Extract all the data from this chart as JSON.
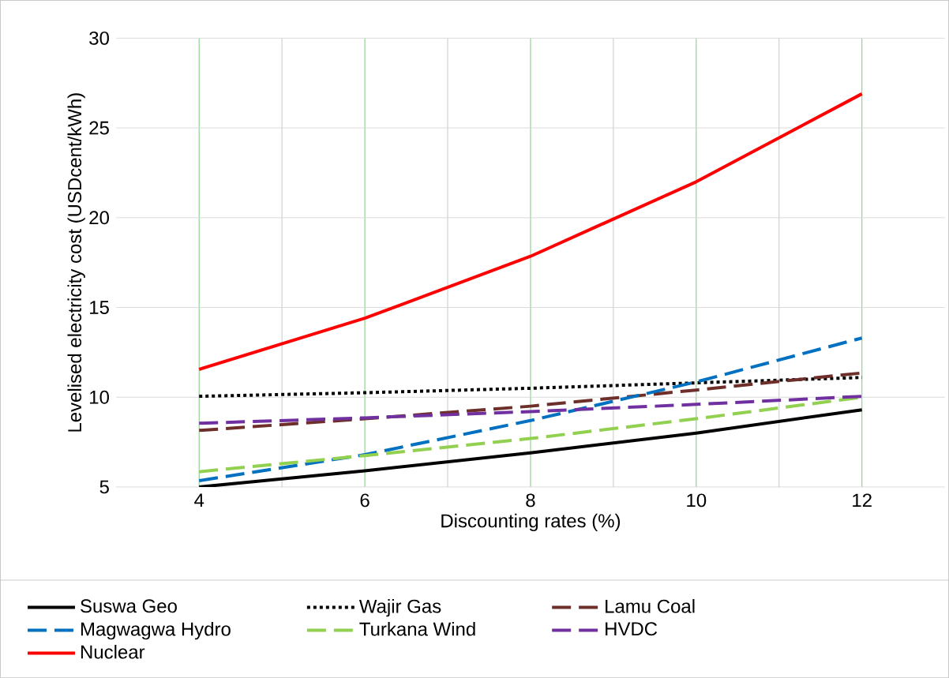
{
  "chart_data": {
    "type": "line",
    "xlabel": "Discounting rates (%)",
    "ylabel": "Levelised electricity cost (USDcent/kWh)",
    "x": [
      4,
      6,
      8,
      10,
      12
    ],
    "series": [
      {
        "name": "Suswa Geo",
        "color": "#000000",
        "line_style": "solid",
        "values": [
          5.0,
          5.9,
          6.9,
          8.0,
          9.3
        ]
      },
      {
        "name": "Wajir Gas",
        "color": "#000000",
        "line_style": "dotted",
        "values": [
          10.05,
          10.25,
          10.5,
          10.8,
          11.1
        ]
      },
      {
        "name": "Lamu Coal",
        "color": "#6e2f2a",
        "line_style": "dashed",
        "values": [
          8.15,
          8.8,
          9.5,
          10.4,
          11.35
        ]
      },
      {
        "name": "Magwagwa Hydro",
        "color": "#0070c0",
        "line_style": "dashed",
        "values": [
          5.35,
          6.8,
          8.7,
          10.85,
          13.3
        ]
      },
      {
        "name": "Turkana Wind",
        "color": "#92d050",
        "line_style": "dashed",
        "values": [
          5.85,
          6.75,
          7.7,
          8.8,
          10.0
        ]
      },
      {
        "name": "HVDC",
        "color": "#7030a0",
        "line_style": "dashed",
        "values": [
          8.55,
          8.85,
          9.2,
          9.6,
          10.05
        ]
      },
      {
        "name": "Nuclear",
        "color": "#ff0000",
        "line_style": "solid",
        "values": [
          11.55,
          14.4,
          17.85,
          22.0,
          26.9
        ]
      }
    ],
    "xlim": [
      3,
      13
    ],
    "xticks": [
      4,
      6,
      8,
      10,
      12
    ],
    "ylim": [
      5,
      30
    ],
    "yticks": [
      5,
      10,
      15,
      20,
      25,
      30
    ],
    "grid": true,
    "legend": "bottom"
  }
}
